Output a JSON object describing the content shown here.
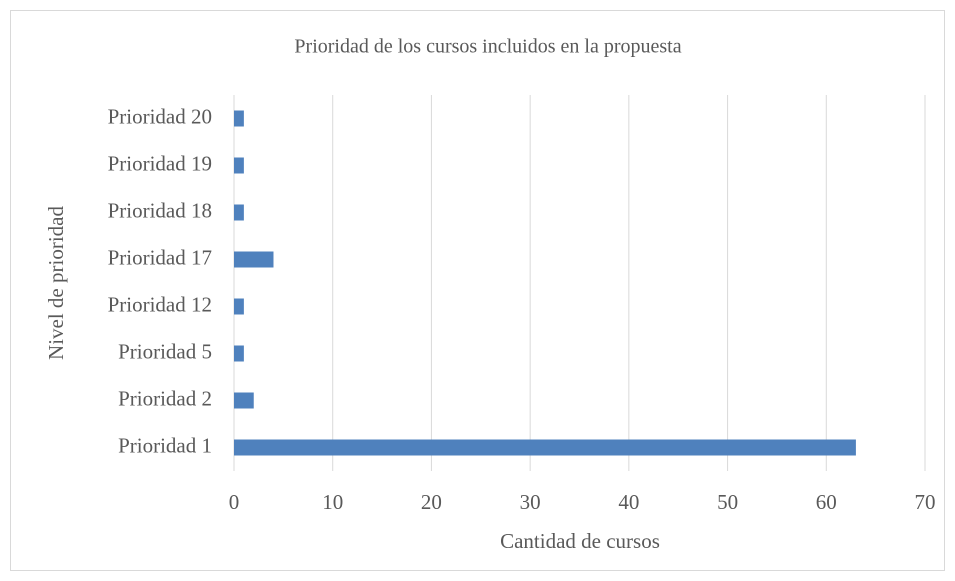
{
  "chart_data": {
    "type": "barh",
    "title": "Prioridad de los cursos incluidos en la propuesta",
    "xlabel": "Cantidad de cursos",
    "ylabel": "Nivel de prioridad",
    "categories": [
      "Prioridad 1",
      "Prioridad 2",
      "Prioridad 5",
      "Prioridad 12",
      "Prioridad 17",
      "Prioridad 18",
      "Prioridad 19",
      "Prioridad 20"
    ],
    "values": [
      63,
      2,
      1,
      1,
      4,
      1,
      1,
      1
    ],
    "color": "#4f81bd",
    "xlim": [
      0,
      70
    ],
    "xticks": [
      0,
      10,
      20,
      30,
      40,
      50,
      60,
      70
    ],
    "grid": true
  }
}
